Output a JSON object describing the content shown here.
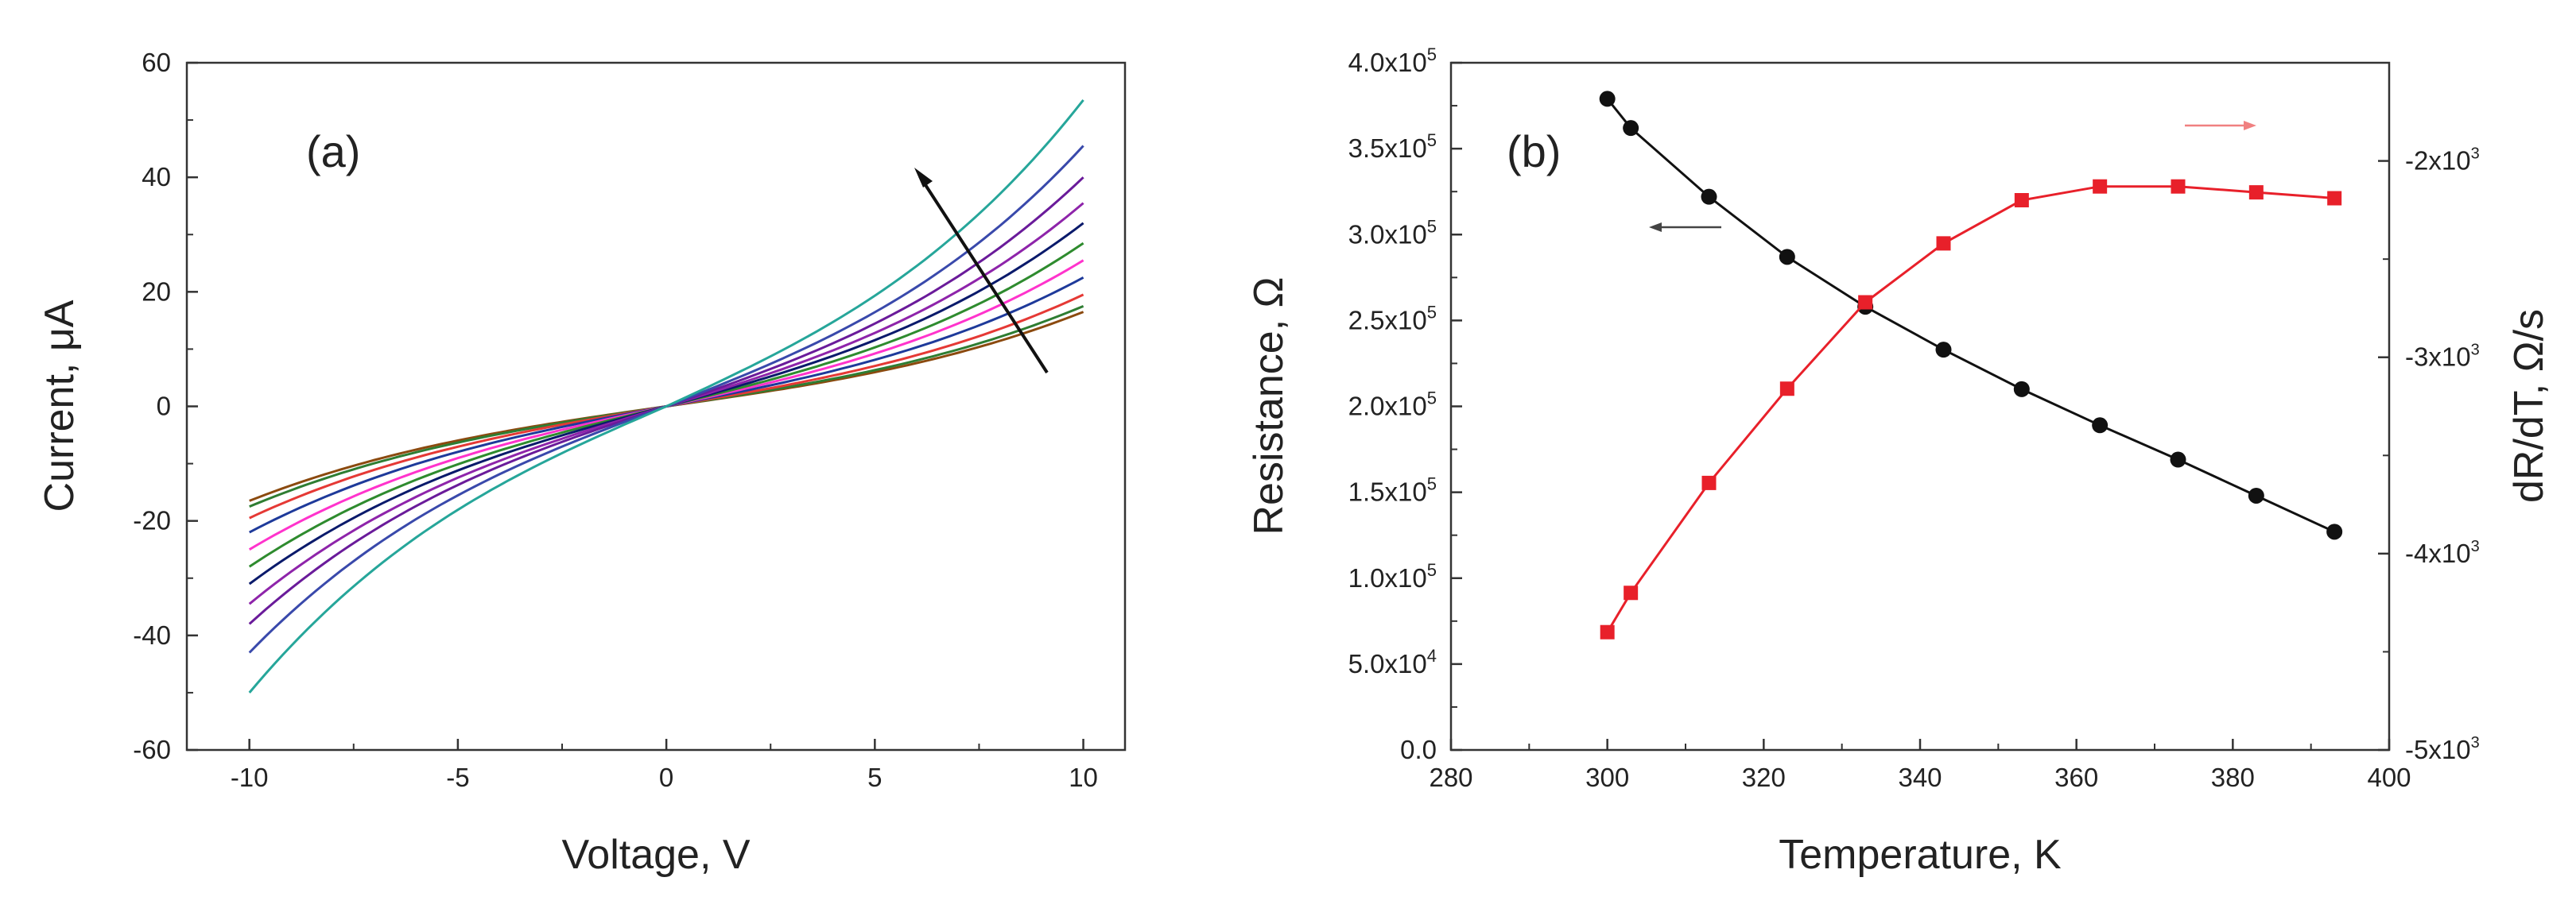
{
  "chart_data": [
    {
      "type": "line",
      "panel_label": "(a)",
      "xlabel": "Voltage, V",
      "ylabel": "Current, μA",
      "xlim": [
        -11.5,
        11
      ],
      "ylim": [
        -60,
        60
      ],
      "xticks": [
        -10,
        -5,
        0,
        5,
        10
      ],
      "xtick_labels": [
        "-10",
        "-5",
        "0",
        "5",
        "10"
      ],
      "yticks": [
        -60,
        -40,
        -20,
        0,
        20,
        40,
        60
      ],
      "ytick_labels": [
        "-60",
        "-40",
        "-20",
        "0",
        "20",
        "40",
        "60"
      ],
      "annotation": "arrow indicating increasing temperature",
      "series": [
        {
          "name": "curve-1",
          "color": "#8b4a0f",
          "i_pos10": 16.5,
          "i_neg10": -16.5
        },
        {
          "name": "curve-2",
          "color": "#2e7d32",
          "i_pos10": 17.5,
          "i_neg10": -17.5
        },
        {
          "name": "curve-3",
          "color": "#e53935",
          "i_pos10": 19.5,
          "i_neg10": -19.5
        },
        {
          "name": "curve-4",
          "color": "#1e3a9a",
          "i_pos10": 22.5,
          "i_neg10": -22.0
        },
        {
          "name": "curve-5",
          "color": "#ff33cc",
          "i_pos10": 25.5,
          "i_neg10": -25.0
        },
        {
          "name": "curve-6",
          "color": "#2e8b2e",
          "i_pos10": 28.5,
          "i_neg10": -28.0
        },
        {
          "name": "curve-7",
          "color": "#0a1a6b",
          "i_pos10": 32.0,
          "i_neg10": -31.0
        },
        {
          "name": "curve-8",
          "color": "#8e24aa",
          "i_pos10": 35.5,
          "i_neg10": -34.5
        },
        {
          "name": "curve-9",
          "color": "#6a1b9a",
          "i_pos10": 40.0,
          "i_neg10": -38.0
        },
        {
          "name": "curve-10",
          "color": "#3949ab",
          "i_pos10": 45.5,
          "i_neg10": -43.0
        },
        {
          "name": "curve-11",
          "color": "#26a69a",
          "i_pos10": 53.5,
          "i_neg10": -50.0
        }
      ]
    },
    {
      "type": "line",
      "panel_label": "(b)",
      "xlabel": "Temperature, K",
      "ylabel_left": "Resistance, Ω",
      "ylabel_right": "dR/dT, Ω/s",
      "xlim": [
        280,
        400
      ],
      "xticks": [
        280,
        300,
        320,
        340,
        360,
        380,
        400
      ],
      "xtick_labels": [
        "280",
        "300",
        "320",
        "340",
        "360",
        "380",
        "400"
      ],
      "ylim_left": [
        0,
        400000
      ],
      "yticks_left": [
        0,
        50000,
        100000,
        150000,
        200000,
        250000,
        300000,
        350000,
        400000
      ],
      "ytick_labels_left": [
        {
          "m": "0.0",
          "e": ""
        },
        {
          "m": "5.0x10",
          "e": "4"
        },
        {
          "m": "1.0x10",
          "e": "5"
        },
        {
          "m": "1.5x10",
          "e": "5"
        },
        {
          "m": "2.0x10",
          "e": "5"
        },
        {
          "m": "2.5x10",
          "e": "5"
        },
        {
          "m": "3.0x10",
          "e": "5"
        },
        {
          "m": "3.5x10",
          "e": "5"
        },
        {
          "m": "4.0x10",
          "e": "5"
        }
      ],
      "ylim_right": [
        -5000,
        -1500
      ],
      "yticks_right": [
        -2000,
        -3000,
        -4000,
        -5000
      ],
      "ytick_labels_right": [
        {
          "m": "-2x10",
          "e": "3"
        },
        {
          "m": "-3x10",
          "e": "3"
        },
        {
          "m": "-4x10",
          "e": "3"
        },
        {
          "m": "-5x10",
          "e": "3"
        }
      ],
      "series": [
        {
          "name": "Resistance",
          "axis": "left",
          "color": "#111111",
          "marker": "circle",
          "x": [
            300,
            303,
            313,
            323,
            333,
            343,
            353,
            363,
            373,
            383,
            393
          ],
          "values": [
            379000,
            362000,
            322000,
            287000,
            258000,
            233000,
            210000,
            189000,
            169000,
            148000,
            127000
          ]
        },
        {
          "name": "dR/dT",
          "axis": "right",
          "color": "#e8202a",
          "marker": "square",
          "x": [
            300,
            303,
            313,
            323,
            333,
            343,
            353,
            363,
            373,
            383,
            393
          ],
          "values": [
            -4400,
            -4200,
            -3640,
            -3160,
            -2720,
            -2420,
            -2200,
            -2130,
            -2130,
            -2160,
            -2190
          ]
        }
      ]
    }
  ]
}
